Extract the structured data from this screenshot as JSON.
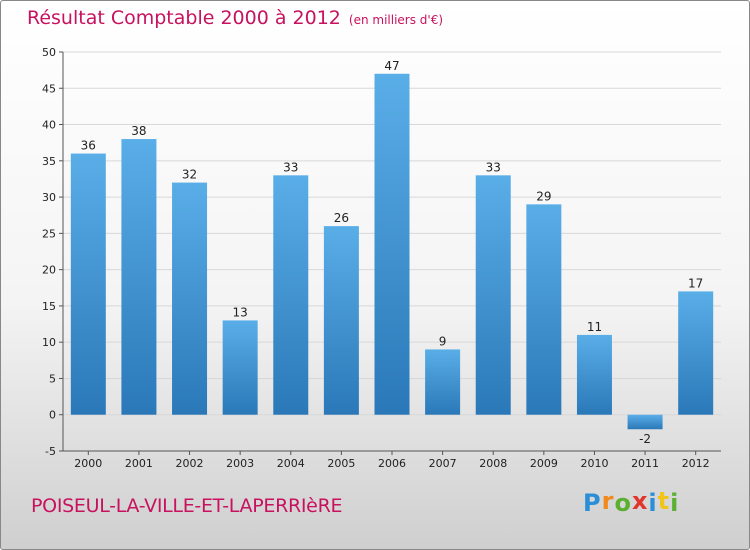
{
  "chart_data": {
    "type": "bar",
    "title": "Résultat Comptable 2000 à 2012",
    "subtitle": "(en milliers d'€)",
    "categories": [
      "2000",
      "2001",
      "2002",
      "2003",
      "2004",
      "2005",
      "2006",
      "2007",
      "2008",
      "2009",
      "2010",
      "2011",
      "2012"
    ],
    "values": [
      36,
      38,
      32,
      13,
      33,
      26,
      47,
      9,
      33,
      29,
      11,
      -2,
      17
    ],
    "ylim": [
      -5,
      50
    ],
    "yticks": [
      -5,
      0,
      5,
      10,
      15,
      20,
      25,
      30,
      35,
      40,
      45,
      50
    ],
    "grid": true,
    "xlabel": "",
    "ylabel": ""
  },
  "commune": "POISEUL-LA-VILLE-ET-LAPERRIèRE",
  "logo": {
    "letters": [
      "P",
      "r",
      "o",
      "x",
      "i",
      "t",
      "i"
    ],
    "colors": [
      "#2a8fd6",
      "#f08a1c",
      "#5bb030",
      "#e0362c",
      "#2a8fd6",
      "#f0c419",
      "#5bb030"
    ]
  },
  "colors": {
    "accent": "#c8115f",
    "bar_top": "#5aaee8",
    "bar_bottom": "#2a78b8"
  }
}
